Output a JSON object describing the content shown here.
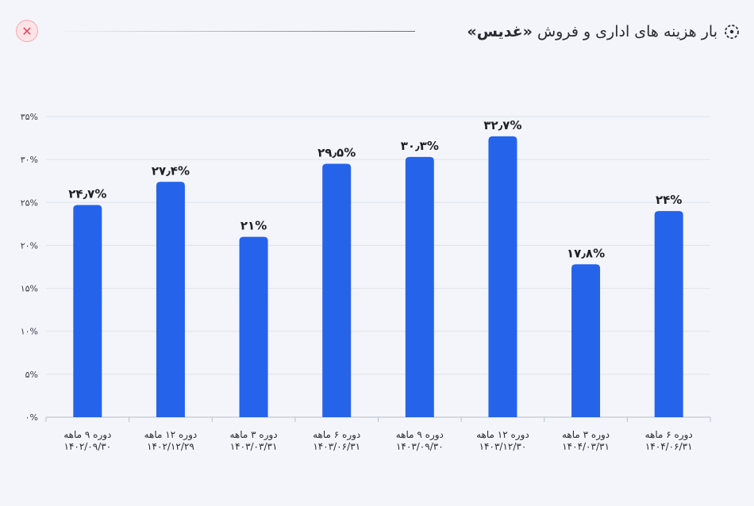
{
  "header": {
    "title_prefix": "بار هزینه های اداری و فروش",
    "title_company": "«غدیس»",
    "close_symbol": "✕"
  },
  "chart_data": {
    "type": "bar",
    "categories": [
      "دوره ۹ ماهه ۱۴۰۲/۰۹/۳۰",
      "دوره ۱۲ ماهه ۱۴۰۲/۱۲/۲۹",
      "دوره ۳ ماهه ۱۴۰۳/۰۳/۳۱",
      "دوره ۶ ماهه ۱۴۰۳/۰۶/۳۱",
      "دوره ۹ ماهه ۱۴۰۳/۰۹/۳۰",
      "دوره ۱۲ ماهه ۱۴۰۳/۱۲/۳۰",
      "دوره ۳ ماهه ۱۴۰۴/۰۳/۳۱",
      "دوره ۶ ماهه ۱۴۰۴/۰۶/۳۱"
    ],
    "category_lines": [
      [
        "دوره ۹ ماهه",
        "۱۴۰۲/۰۹/۳۰"
      ],
      [
        "دوره ۱۲ ماهه",
        "۱۴۰۲/۱۲/۲۹"
      ],
      [
        "دوره ۳ ماهه",
        "۱۴۰۳/۰۳/۳۱"
      ],
      [
        "دوره ۶ ماهه",
        "۱۴۰۳/۰۶/۳۱"
      ],
      [
        "دوره ۹ ماهه",
        "۱۴۰۳/۰۹/۳۰"
      ],
      [
        "دوره ۱۲ ماهه",
        "۱۴۰۳/۱۲/۳۰"
      ],
      [
        "دوره ۳ ماهه",
        "۱۴۰۴/۰۳/۳۱"
      ],
      [
        "دوره ۶ ماهه",
        "۱۴۰۴/۰۶/۳۱"
      ]
    ],
    "values": [
      24.7,
      27.4,
      21,
      29.5,
      30.3,
      32.7,
      17.8,
      24
    ],
    "value_labels": [
      "۲۴٫۷%",
      "۲۷٫۴%",
      "۲۱%",
      "۲۹٫۵%",
      "۳۰٫۳%",
      "۳۲٫۷%",
      "۱۷٫۸%",
      "۲۴%"
    ],
    "y_ticks": [
      0,
      5,
      10,
      15,
      20,
      25,
      30,
      35
    ],
    "y_tick_labels": [
      "۰%",
      "۵%",
      "۱۰%",
      "۱۵%",
      "۲۰%",
      "۲۵%",
      "۳۰%",
      "۳۵%"
    ],
    "ylim": [
      0,
      35
    ],
    "grid": true,
    "bar_color": "#2563eb"
  }
}
